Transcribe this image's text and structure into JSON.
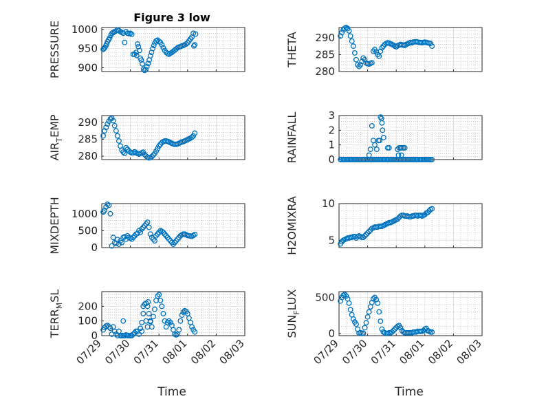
{
  "figure": {
    "title": "Figure 3 low",
    "xlabel": "Time",
    "xticks": [
      "07/29",
      "07/30",
      "07/31",
      "08/01",
      "08/02",
      "08/03"
    ],
    "marker_color": "#0072BD"
  },
  "chart_data": [
    {
      "type": "scatter",
      "ylabel": "PRESSURE",
      "ylim": [
        890,
        1005
      ],
      "yticks": [
        900,
        950,
        1000
      ],
      "grid": true,
      "x": [
        0.05,
        0.08,
        0.11,
        0.14,
        0.17,
        0.2,
        0.24,
        0.28,
        0.32,
        0.36,
        0.4,
        0.45,
        0.5,
        0.55,
        0.6,
        0.65,
        0.7,
        0.75,
        0.8,
        0.85,
        0.9,
        0.95,
        1.0,
        1.05,
        1.1,
        1.15,
        1.2,
        1.22,
        1.25,
        1.28,
        1.32,
        1.35,
        1.38,
        1.42,
        1.46,
        1.5,
        1.54,
        1.58,
        1.62,
        1.66,
        1.7,
        1.74,
        1.78,
        1.82,
        1.86,
        1.9,
        1.95,
        2.0,
        2.05,
        2.1,
        2.15,
        2.2,
        2.25,
        2.3,
        2.35,
        2.4,
        2.45,
        2.5,
        2.55,
        2.6,
        2.65,
        2.7,
        2.75,
        2.8,
        2.85,
        2.9,
        2.95,
        3.0,
        3.05,
        3.1,
        3.15,
        3.2,
        3.22,
        3.25,
        3.28
      ],
      "y": [
        948,
        950,
        953,
        957,
        962,
        968,
        973,
        978,
        985,
        990,
        992,
        994,
        996,
        999,
        997,
        994,
        992,
        990,
        966,
        994,
        990,
        989,
        990,
        987,
        935,
        935,
        940,
        932,
        962,
        955,
        945,
        925,
        920,
        910,
        896,
        893,
        895,
        903,
        911,
        920,
        931,
        940,
        950,
        958,
        965,
        970,
        972,
        969,
        966,
        960,
        952,
        945,
        940,
        937,
        935,
        938,
        940,
        943,
        946,
        949,
        952,
        954,
        955,
        957,
        958,
        960,
        962,
        965,
        970,
        975,
        980,
        990,
        957,
        960,
        988
      ],
      "series_color": "#0072BD"
    },
    {
      "type": "scatter",
      "ylabel": "THETA",
      "ylim": [
        280,
        293
      ],
      "yticks": [
        280,
        285,
        290
      ],
      "grid": true,
      "x": [
        0.05,
        0.1,
        0.15,
        0.2,
        0.25,
        0.3,
        0.35,
        0.4,
        0.45,
        0.5,
        0.55,
        0.6,
        0.65,
        0.7,
        0.75,
        0.8,
        0.85,
        0.9,
        0.95,
        1.0,
        1.05,
        1.1,
        1.15,
        1.2,
        1.25,
        1.3,
        1.35,
        1.4,
        1.45,
        1.5,
        1.55,
        1.6,
        1.65,
        1.7,
        1.75,
        1.8,
        1.85,
        1.9,
        1.95,
        2.0,
        2.05,
        2.1,
        2.15,
        2.2,
        2.25,
        2.3,
        2.35,
        2.4,
        2.45,
        2.5,
        2.55,
        2.6,
        2.65,
        2.7,
        2.75,
        2.8,
        2.85,
        2.9,
        2.95,
        3.0,
        3.05,
        3.1,
        3.15,
        3.2,
        3.25
      ],
      "y": [
        290.5,
        291.5,
        292.3,
        292.8,
        293.0,
        292.7,
        292.0,
        290.5,
        289.0,
        287.5,
        285.5,
        283.5,
        282.0,
        281.5,
        282.0,
        283.0,
        284.0,
        283.5,
        282.5,
        282.3,
        282.2,
        282.4,
        282.6,
        286.0,
        286.5,
        285.8,
        285.0,
        284.5,
        286.0,
        287.0,
        287.5,
        288.0,
        288.3,
        288.5,
        288.4,
        288.2,
        288.0,
        287.8,
        287.5,
        287.3,
        287.6,
        287.8,
        288.0,
        287.9,
        287.8,
        287.7,
        288.0,
        288.2,
        288.4,
        288.6,
        288.5,
        288.7,
        288.8,
        288.8,
        288.7,
        288.6,
        288.6,
        288.5,
        288.6,
        288.7,
        288.6,
        288.5,
        288.4,
        288.3,
        287.5
      ],
      "series_color": "#0072BD"
    },
    {
      "type": "scatter",
      "ylabel": "AIR_TEMP",
      "ylim": [
        279,
        292
      ],
      "yticks": [
        280,
        285,
        290
      ],
      "grid": true,
      "x": [
        0.05,
        0.1,
        0.15,
        0.2,
        0.25,
        0.3,
        0.35,
        0.4,
        0.45,
        0.5,
        0.55,
        0.6,
        0.65,
        0.7,
        0.75,
        0.8,
        0.85,
        0.9,
        0.95,
        1.0,
        1.05,
        1.1,
        1.15,
        1.2,
        1.25,
        1.3,
        1.35,
        1.4,
        1.45,
        1.5,
        1.55,
        1.6,
        1.65,
        1.7,
        1.75,
        1.8,
        1.85,
        1.9,
        1.95,
        2.0,
        2.05,
        2.1,
        2.15,
        2.2,
        2.25,
        2.3,
        2.35,
        2.4,
        2.45,
        2.5,
        2.55,
        2.6,
        2.65,
        2.7,
        2.75,
        2.8,
        2.85,
        2.9,
        2.95,
        3.0,
        3.05,
        3.1,
        3.15,
        3.2,
        3.25
      ],
      "y": [
        286.0,
        287.5,
        288.5,
        289.5,
        290.3,
        291.0,
        291.2,
        290.5,
        289.0,
        287.5,
        286.0,
        284.5,
        283.0,
        281.8,
        281.2,
        280.8,
        282.5,
        282.0,
        281.5,
        281.2,
        281.0,
        281.0,
        281.3,
        281.0,
        280.8,
        280.6,
        280.8,
        281.0,
        281.2,
        280.5,
        280.0,
        279.7,
        279.5,
        279.6,
        279.9,
        280.3,
        280.8,
        281.5,
        282.2,
        283.0,
        283.5,
        284.0,
        284.3,
        284.5,
        284.5,
        284.4,
        284.2,
        284.0,
        283.8,
        283.6,
        283.5,
        283.5,
        283.6,
        283.8,
        284.0,
        284.2,
        284.3,
        284.5,
        284.7,
        284.9,
        285.1,
        285.3,
        285.6,
        286.0,
        286.8
      ],
      "series_color": "#0072BD"
    },
    {
      "type": "scatter",
      "ylabel": "RAINFALL",
      "ylim": [
        0,
        3
      ],
      "yticks": [
        0,
        1,
        2,
        3
      ],
      "grid": true,
      "x": [
        0.05,
        0.1,
        0.15,
        0.2,
        0.25,
        0.3,
        0.35,
        0.4,
        0.45,
        0.5,
        0.55,
        0.6,
        0.65,
        0.7,
        0.75,
        0.8,
        0.85,
        0.9,
        0.95,
        1.0,
        1.05,
        1.1,
        1.15,
        1.2,
        1.25,
        1.3,
        1.35,
        1.4,
        1.45,
        1.5,
        1.55,
        1.6,
        1.65,
        1.7,
        1.75,
        1.8,
        1.85,
        1.9,
        1.95,
        2.0,
        2.05,
        2.1,
        2.15,
        2.2,
        2.25,
        2.3,
        2.35,
        2.4,
        2.45,
        2.5,
        2.55,
        2.6,
        2.65,
        2.7,
        2.75,
        2.8,
        2.85,
        2.9,
        2.95,
        3.0,
        3.05,
        3.1,
        3.15,
        3.2,
        3.25,
        1.05,
        1.1,
        1.15,
        1.2,
        1.25,
        1.32,
        1.38,
        1.45,
        1.5,
        1.7,
        1.75,
        2.05,
        2.1,
        2.15,
        2.2,
        2.25,
        2.3,
        1.42,
        1.48,
        1.52,
        1.56,
        2.08,
        2.18
      ],
      "y": [
        0,
        0,
        0,
        0,
        0,
        0,
        0,
        0,
        0,
        0,
        0,
        0,
        0,
        0,
        0,
        0,
        0,
        0,
        0,
        0,
        0,
        0,
        0,
        0,
        0,
        0,
        0,
        0,
        0,
        0,
        0,
        0,
        0,
        0,
        0,
        0,
        0,
        0,
        0,
        0,
        0,
        0,
        0,
        0,
        0,
        0,
        0,
        0,
        0,
        0,
        0,
        0,
        0,
        0,
        0,
        0,
        0,
        0,
        0,
        0,
        0,
        0,
        0,
        0,
        0,
        0.3,
        0.7,
        2.3,
        1.3,
        1.0,
        0.7,
        1.3,
        2.9,
        2.5,
        0.8,
        0.8,
        0.7,
        0.8,
        0.8,
        0.8,
        0.8,
        0.8,
        1.3,
        2.8,
        2.0,
        1.5,
        0.3,
        0.3
      ],
      "series_color": "#0072BD"
    },
    {
      "type": "scatter",
      "ylabel": "MIXDEPTH",
      "ylim": [
        0,
        1300
      ],
      "yticks": [
        0,
        500,
        1000
      ],
      "grid": true,
      "x": [
        0.05,
        0.1,
        0.15,
        0.2,
        0.25,
        0.3,
        0.35,
        0.4,
        0.45,
        0.5,
        0.55,
        0.6,
        0.65,
        0.7,
        0.75,
        0.8,
        0.85,
        0.9,
        0.95,
        1.0,
        1.05,
        1.1,
        1.15,
        1.2,
        1.25,
        1.3,
        1.35,
        1.4,
        1.45,
        1.5,
        1.55,
        1.6,
        1.65,
        1.7,
        1.75,
        1.8,
        1.85,
        1.9,
        1.95,
        2.0,
        2.05,
        2.1,
        2.15,
        2.2,
        2.25,
        2.3,
        2.35,
        2.4,
        2.45,
        2.5,
        2.55,
        2.6,
        2.65,
        2.7,
        2.75,
        2.8,
        2.85,
        2.9,
        2.95,
        3.0,
        3.05,
        3.1,
        3.15,
        3.2,
        3.25
      ],
      "y": [
        1050,
        1100,
        1200,
        1280,
        1250,
        1000,
        50,
        300,
        150,
        120,
        240,
        100,
        200,
        150,
        300,
        320,
        250,
        350,
        300,
        280,
        250,
        300,
        350,
        400,
        420,
        500,
        450,
        550,
        600,
        650,
        700,
        750,
        600,
        400,
        300,
        250,
        200,
        350,
        400,
        450,
        500,
        480,
        450,
        400,
        350,
        300,
        250,
        200,
        150,
        100,
        150,
        200,
        250,
        300,
        350,
        380,
        400,
        400,
        380,
        360,
        350,
        340,
        330,
        360,
        390
      ],
      "series_color": "#0072BD"
    },
    {
      "type": "scatter",
      "ylabel": "H2OMIXRA",
      "ylim": [
        4,
        10
      ],
      "yticks": [
        5,
        10
      ],
      "grid": true,
      "x": [
        0.05,
        0.1,
        0.15,
        0.2,
        0.25,
        0.3,
        0.35,
        0.4,
        0.45,
        0.5,
        0.55,
        0.6,
        0.65,
        0.7,
        0.75,
        0.8,
        0.85,
        0.9,
        0.95,
        1.0,
        1.05,
        1.1,
        1.15,
        1.2,
        1.25,
        1.3,
        1.35,
        1.4,
        1.45,
        1.5,
        1.55,
        1.6,
        1.65,
        1.7,
        1.75,
        1.8,
        1.85,
        1.9,
        1.95,
        2.0,
        2.05,
        2.1,
        2.15,
        2.2,
        2.25,
        2.3,
        2.35,
        2.4,
        2.45,
        2.5,
        2.55,
        2.6,
        2.65,
        2.7,
        2.75,
        2.8,
        2.85,
        2.9,
        2.95,
        3.0,
        3.05,
        3.1,
        3.15,
        3.2,
        3.25
      ],
      "y": [
        4.5,
        4.8,
        5.0,
        5.1,
        5.2,
        5.3,
        5.3,
        5.4,
        5.4,
        5.5,
        5.5,
        5.3,
        5.5,
        5.6,
        5.5,
        5.4,
        5.4,
        5.6,
        5.8,
        6.0,
        6.2,
        6.4,
        6.6,
        6.7,
        6.8,
        6.8,
        6.8,
        6.9,
        6.9,
        6.9,
        7.0,
        7.1,
        7.2,
        7.3,
        7.4,
        7.4,
        7.5,
        7.6,
        7.7,
        7.8,
        7.9,
        8.1,
        8.3,
        8.4,
        8.4,
        8.3,
        8.3,
        8.3,
        8.2,
        8.2,
        8.3,
        8.3,
        8.4,
        8.4,
        8.3,
        8.4,
        8.4,
        8.3,
        8.4,
        8.5,
        8.7,
        8.8,
        9.0,
        9.2,
        9.3
      ],
      "series_color": "#0072BD"
    },
    {
      "type": "scatter",
      "ylabel": "TERR_MSL",
      "ylim": [
        0,
        300
      ],
      "yticks": [
        0,
        100,
        200
      ],
      "grid": true,
      "x": [
        0.05,
        0.1,
        0.15,
        0.2,
        0.25,
        0.3,
        0.35,
        0.4,
        0.45,
        0.5,
        0.55,
        0.6,
        0.65,
        0.7,
        0.75,
        0.8,
        0.85,
        0.9,
        0.95,
        1.0,
        1.05,
        1.1,
        1.15,
        1.2,
        1.25,
        1.3,
        1.35,
        1.4,
        1.45,
        1.5,
        1.55,
        1.6,
        1.65,
        1.7,
        1.75,
        1.8,
        1.85,
        1.9,
        1.95,
        2.0,
        2.05,
        2.1,
        2.15,
        2.2,
        2.25,
        2.3,
        2.35,
        2.4,
        2.45,
        2.5,
        2.55,
        2.6,
        2.65,
        2.7,
        2.75,
        2.8,
        2.85,
        2.9,
        2.95,
        3.0,
        3.05,
        3.1,
        3.15,
        3.2,
        3.25,
        0.75,
        1.4,
        1.45,
        1.55,
        1.6,
        1.62,
        1.7
      ],
      "y": [
        40,
        55,
        65,
        70,
        60,
        50,
        10,
        60,
        30,
        10,
        0,
        30,
        0,
        0,
        0,
        0,
        5,
        0,
        0,
        0,
        0,
        10,
        20,
        30,
        30,
        10,
        50,
        90,
        200,
        215,
        220,
        200,
        150,
        100,
        60,
        130,
        180,
        240,
        270,
        280,
        240,
        200,
        150,
        100,
        60,
        90,
        100,
        90,
        70,
        40,
        10,
        5,
        10,
        40,
        100,
        140,
        160,
        170,
        165,
        150,
        120,
        90,
        60,
        40,
        25,
        100,
        30,
        150,
        100,
        60,
        230,
        95
      ],
      "series_color": "#0072BD"
    },
    {
      "type": "scatter",
      "ylabel": "SUN_FLUX",
      "ylim": [
        -30,
        580
      ],
      "yticks": [
        0,
        500
      ],
      "grid": true,
      "x": [
        0.05,
        0.1,
        0.15,
        0.2,
        0.25,
        0.3,
        0.35,
        0.4,
        0.45,
        0.5,
        0.55,
        0.6,
        0.65,
        0.7,
        0.75,
        0.8,
        0.85,
        0.9,
        0.95,
        1.0,
        1.05,
        1.1,
        1.15,
        1.2,
        1.25,
        1.3,
        1.35,
        1.4,
        1.45,
        1.5,
        1.55,
        1.6,
        1.65,
        1.7,
        1.75,
        1.8,
        1.85,
        1.9,
        1.95,
        2.0,
        2.05,
        2.1,
        2.15,
        2.2,
        2.25,
        2.3,
        2.35,
        2.4,
        2.45,
        2.5,
        2.55,
        2.6,
        2.65,
        2.7,
        2.75,
        2.8,
        2.85,
        2.9,
        2.95,
        3.0,
        3.05,
        3.1,
        3.15,
        3.2,
        3.25
      ],
      "y": [
        450,
        500,
        530,
        540,
        520,
        480,
        420,
        330,
        260,
        200,
        160,
        130,
        60,
        5,
        10,
        0,
        5,
        80,
        150,
        230,
        300,
        370,
        430,
        480,
        500,
        470,
        420,
        300,
        170,
        60,
        20,
        10,
        0,
        0,
        10,
        10,
        20,
        40,
        60,
        80,
        100,
        110,
        80,
        40,
        20,
        10,
        10,
        10,
        10,
        10,
        10,
        20,
        20,
        20,
        30,
        30,
        30,
        30,
        40,
        60,
        70,
        40,
        30,
        20,
        20
      ],
      "series_color": "#0072BD"
    }
  ]
}
